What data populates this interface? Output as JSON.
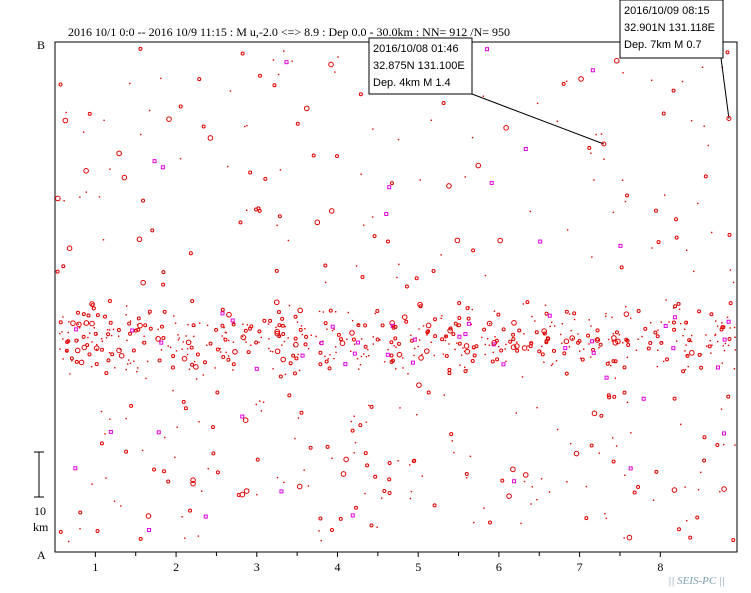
{
  "chart_data": {
    "type": "scatter",
    "title": "2016 10/1 0:0 -- 2016 10/9 11:15  : M u,-2.0 <=> 8.9   :  Dep 0.0 - 30.0km :  NN= 912 /N= 950",
    "xlabel": "",
    "ylabel": "",
    "x_ticks": [
      "1",
      "2",
      "3",
      "4",
      "5",
      "6",
      "7",
      "8"
    ],
    "xlim": [
      0.5,
      8.95
    ],
    "ylim_km": [
      0,
      30
    ],
    "end_label_top": "B",
    "end_label_bottom": "A",
    "scale_bar_value": "10",
    "scale_bar_unit": "km",
    "colors": {
      "event": "#e00000",
      "highlight": "#e000e0",
      "frame": "#000000"
    },
    "callouts": [
      {
        "date": "2016/10/08 01:46",
        "lat": "32.875N",
        "lon": "131.100E",
        "dep": "Dep. 4km",
        "mag": "M 1.4",
        "event_x": 7.3,
        "event_y_km": 24.0
      },
      {
        "date": "2016/10/09 08:15",
        "lat": "32.901N",
        "lon": "131.118E",
        "dep": "Dep. 7km",
        "mag": "M 0.7",
        "event_x": 8.85,
        "event_y_km": 25.5
      }
    ],
    "events": {
      "count": 950,
      "density_band": [
        {
          "y_km_min": 9.5,
          "y_km_max": 15.5,
          "share": 0.62
        },
        {
          "y_km_min": 0.5,
          "y_km_max": 9.5,
          "share": 0.2
        },
        {
          "y_km_min": 15.5,
          "y_km_max": 30,
          "share": 0.18
        }
      ],
      "highlight_share": 0.05
    }
  },
  "brand": "|| SEIS-PC ||"
}
